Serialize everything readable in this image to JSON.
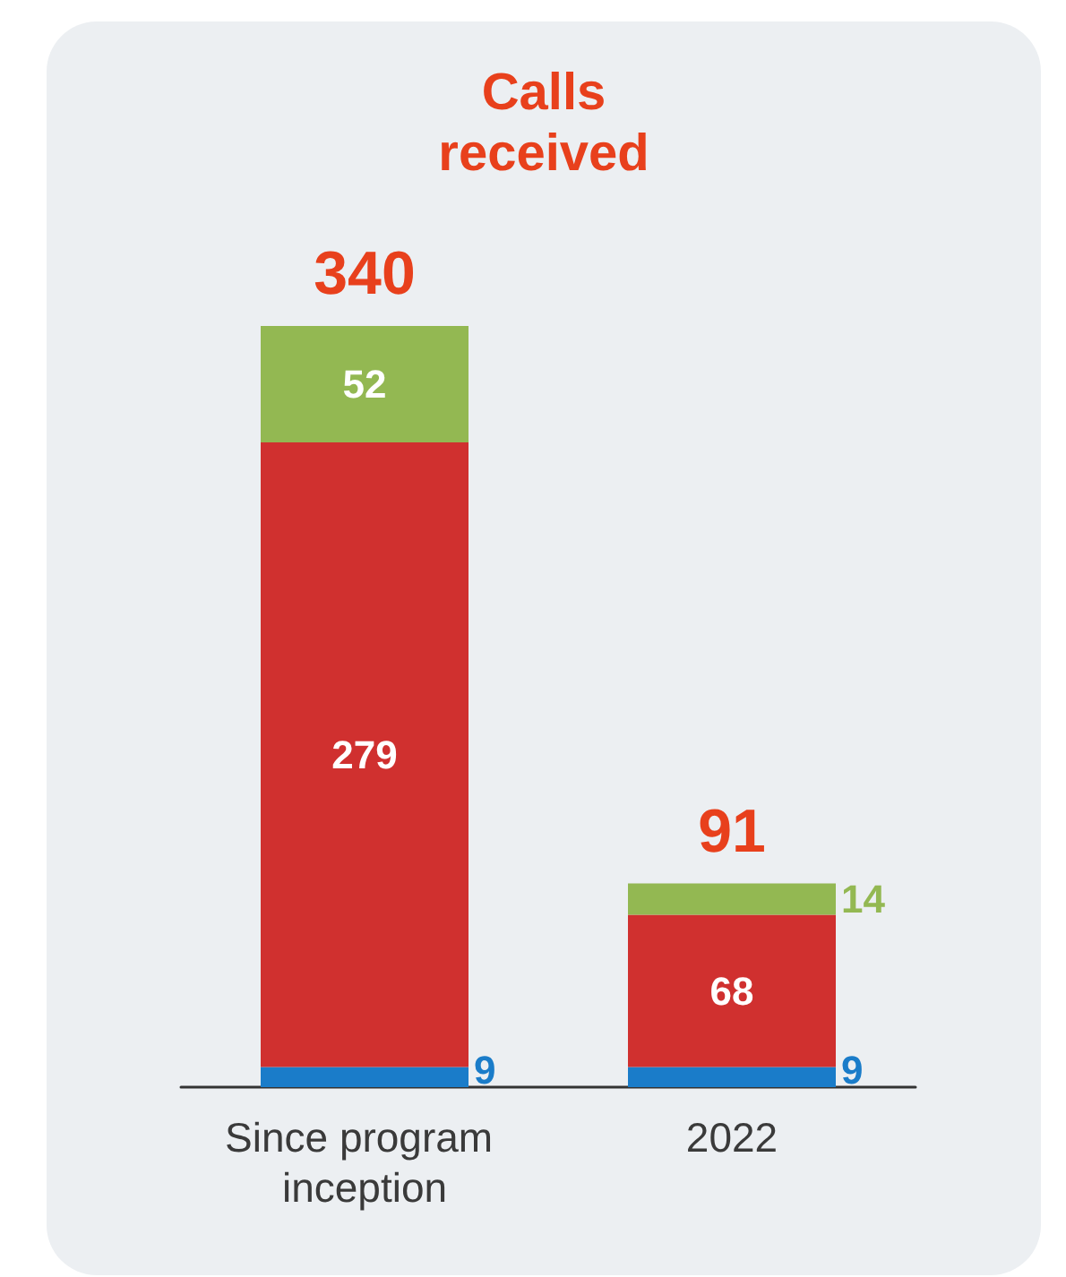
{
  "chart_data": {
    "type": "bar",
    "title": "Calls\nreceived",
    "categories": [
      "Since program inception",
      "2022"
    ],
    "stacked": true,
    "data_labels": true,
    "totals": [
      "340",
      "91"
    ],
    "series": [
      {
        "color": "#1a7cc9",
        "values": [
          9,
          9
        ]
      },
      {
        "color": "#d0302f",
        "values": [
          279,
          68
        ]
      },
      {
        "color": "#93b852",
        "values": [
          52,
          14
        ]
      }
    ]
  }
}
